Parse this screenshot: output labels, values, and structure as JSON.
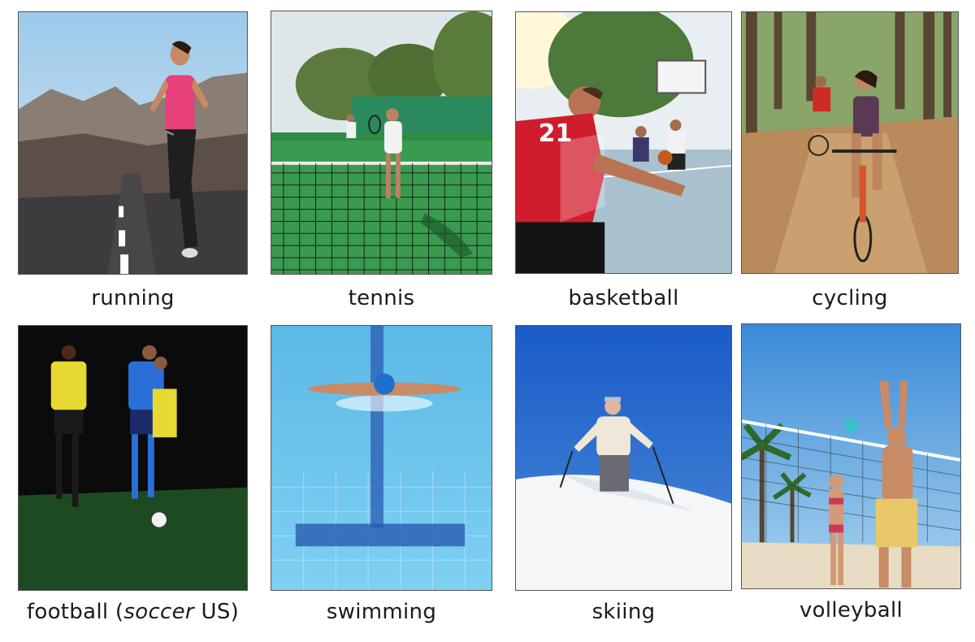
{
  "cards": [
    {
      "label": "running"
    },
    {
      "label": "tennis"
    },
    {
      "label": "basketball"
    },
    {
      "label": "cycling"
    },
    {
      "label_pre": "football (",
      "label_italic": "soccer",
      "label_post": " US)"
    },
    {
      "label": "swimming"
    },
    {
      "label": "skiing"
    },
    {
      "label": "volleyball"
    }
  ],
  "jersey_number": "21"
}
